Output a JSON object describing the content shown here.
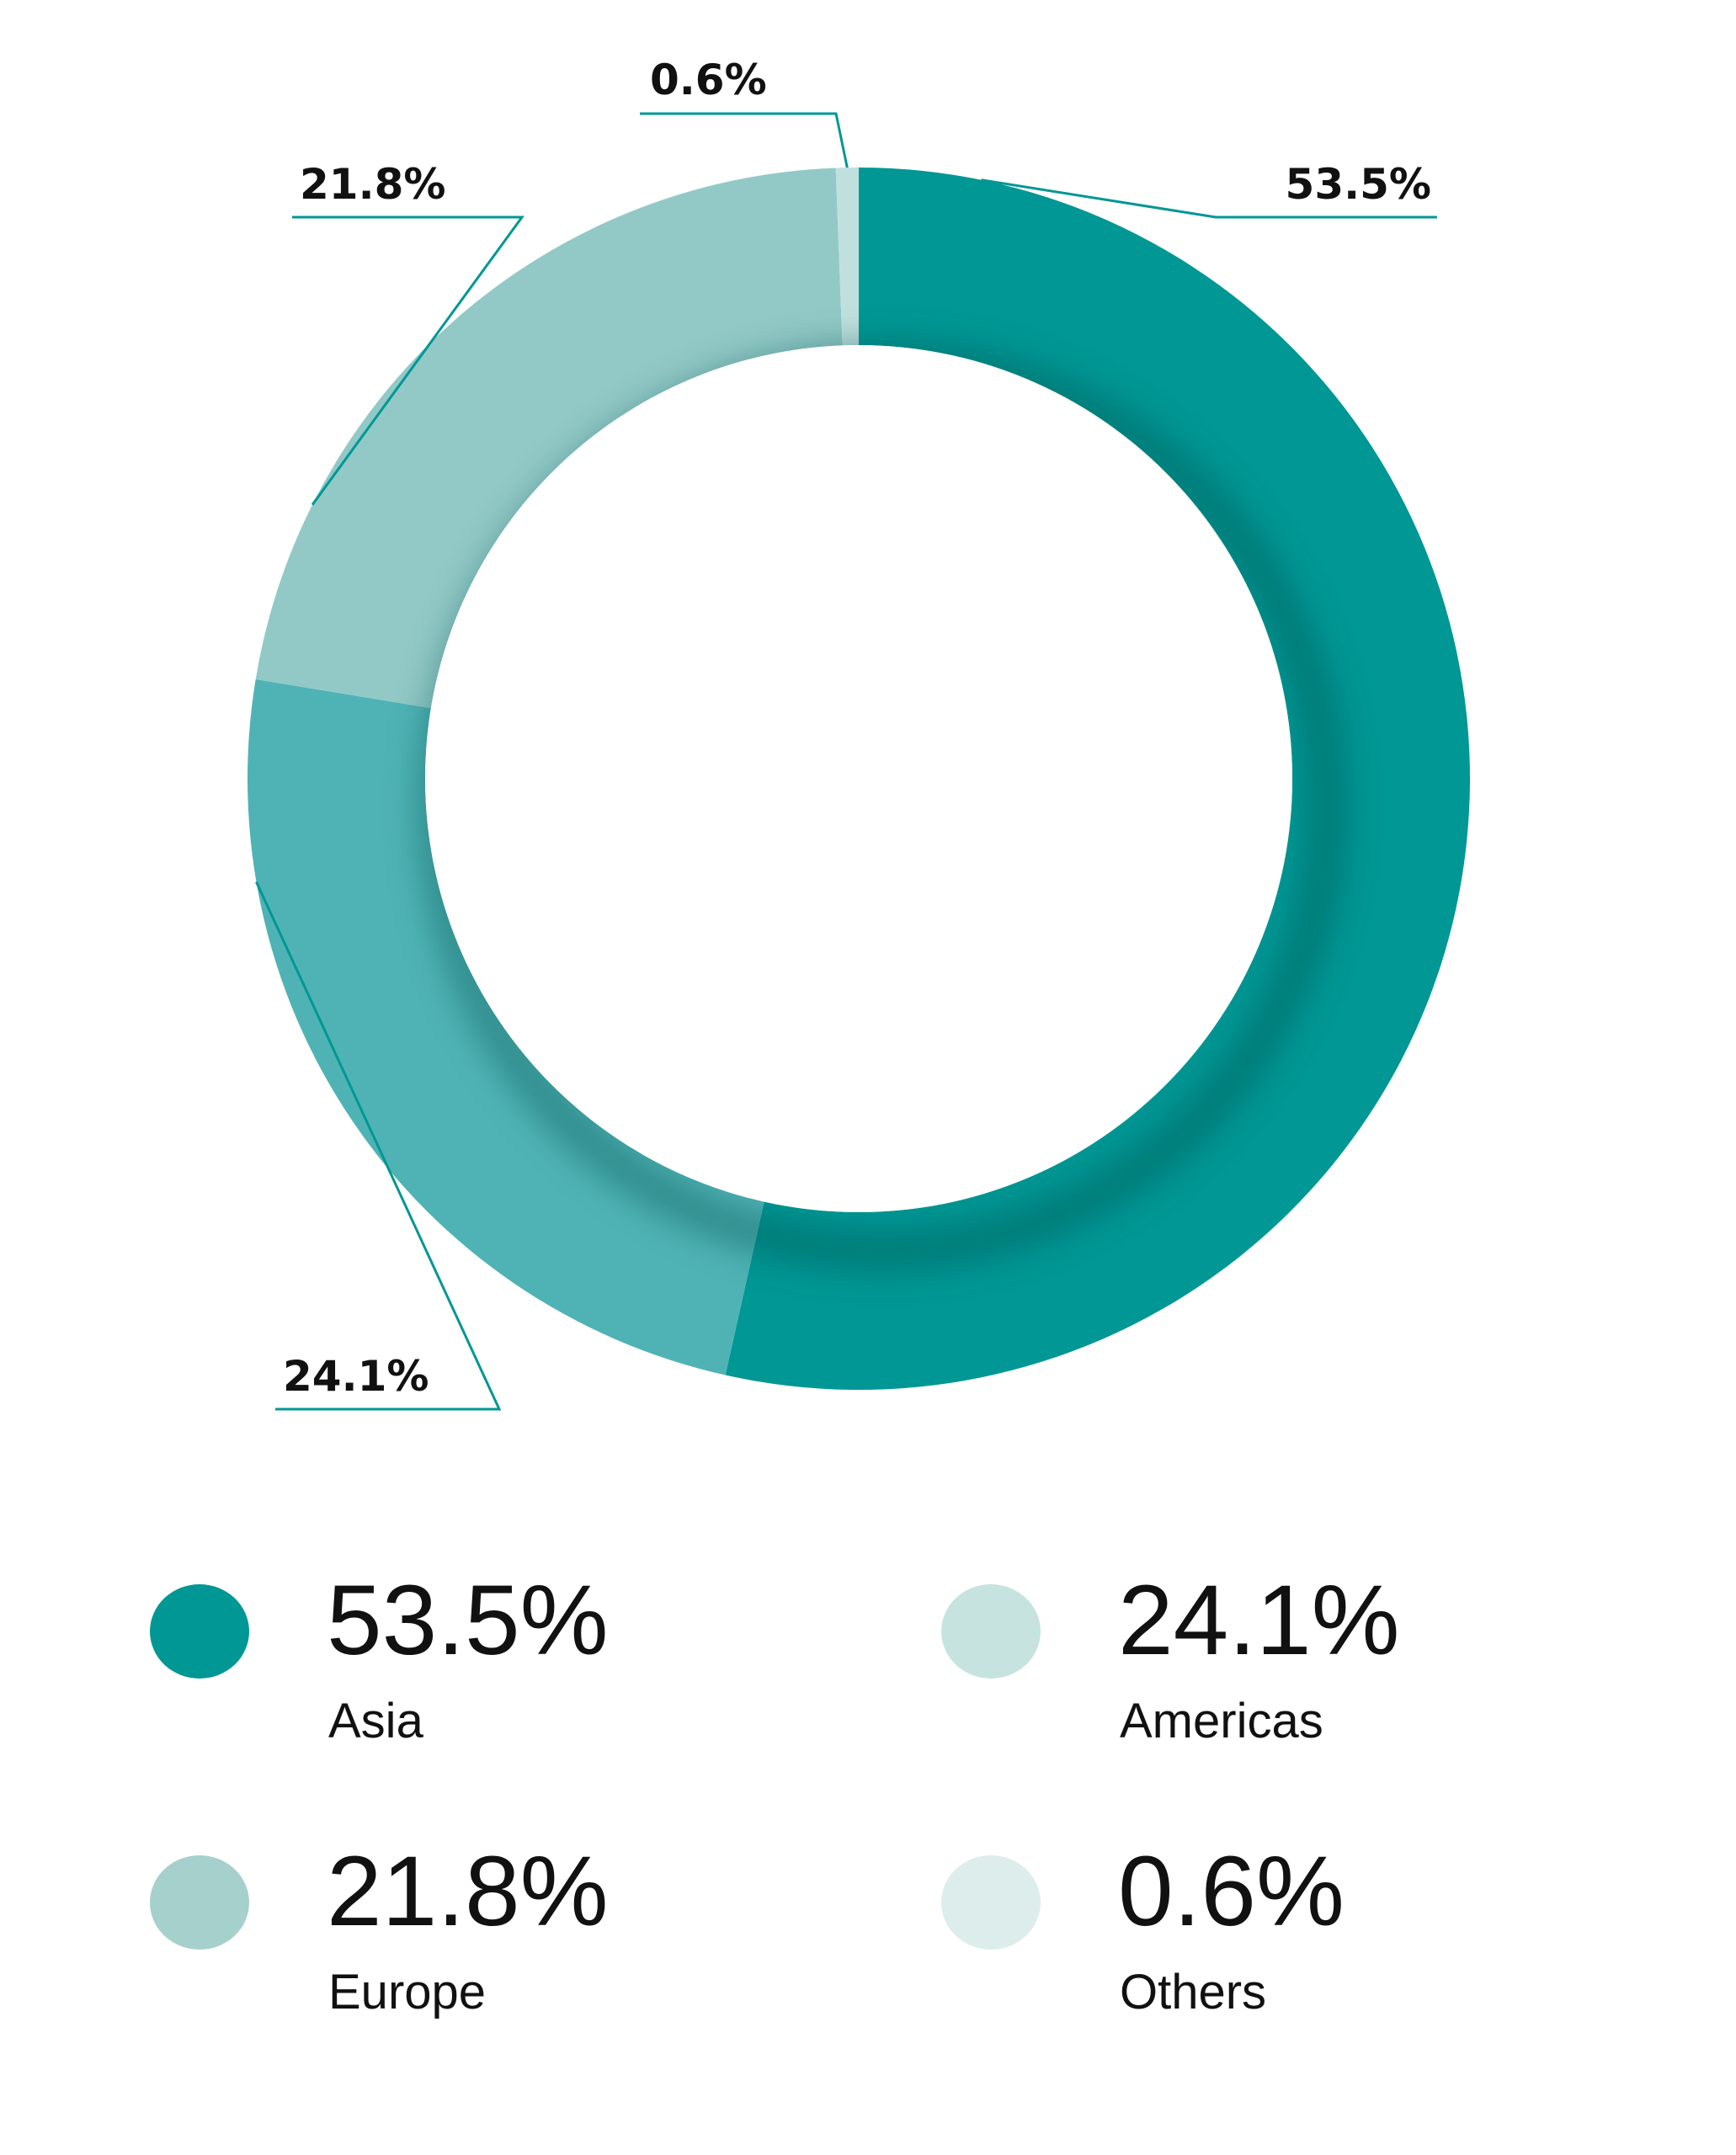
{
  "chart_data": {
    "type": "pie",
    "variant": "donut",
    "title": "",
    "categories": [
      "Asia",
      "Americas",
      "Europe",
      "Others"
    ],
    "values": [
      53.5,
      24.1,
      21.8,
      0.6
    ],
    "unit": "%",
    "value_labels": [
      "53.5%",
      "24.1%",
      "21.8%",
      "0.6%"
    ],
    "colors": [
      "#009794",
      "#4fb3b5",
      "#92c9c7",
      "#c0e0de"
    ],
    "start_angle_deg": 0,
    "direction": "clockwise",
    "legend": {
      "placement": "bottom",
      "items": [
        {
          "value": "53.5%",
          "name": "Asia",
          "color": "#009794"
        },
        {
          "value": "24.1%",
          "name": "Americas",
          "color": "#c6e3e0"
        },
        {
          "value": "21.8%",
          "name": "Europe",
          "color": "#a6d0cc"
        },
        {
          "value": "0.6%",
          "name": "Others",
          "color": "#dcedeb"
        }
      ]
    },
    "leader_line_color": "#009794"
  }
}
